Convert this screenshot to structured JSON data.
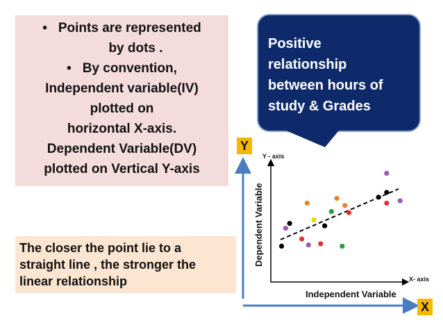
{
  "left_box": {
    "lines": [
      "Points are represented",
      "by dots .",
      "By convention,",
      "Independent variable(IV)",
      "plotted on",
      "horizontal  X-axis.",
      "Dependent Variable(DV)",
      "plotted on Vertical Y-axis"
    ]
  },
  "callout": {
    "lines": [
      "Positive",
      "relationship",
      "between hours of",
      "study & Grades"
    ]
  },
  "bottom_box": {
    "lines": [
      "The closer the point lie to a",
      "straight line , the stronger the",
      "linear relationship"
    ]
  },
  "labels": {
    "y": "Y",
    "x": "X"
  },
  "chart": {
    "y_axis_label": "Y - axis",
    "x_axis_label": "X- axis",
    "y_title": "Dependent Variable",
    "x_title": "Independent Variable"
  },
  "colors": {
    "arrow": "#4a7cc0",
    "callout_bg": "#0f2a6a",
    "label_bg": "#f5b800",
    "pink_bg": "#f4dcdc",
    "beige_bg": "#fce6d2"
  },
  "chart_data": {
    "type": "scatter",
    "title": "",
    "xlabel": "Independent Variable",
    "ylabel": "Dependent Variable",
    "trend": "positive linear",
    "points": [
      {
        "x": 0.08,
        "y": 0.3,
        "color": "#000000"
      },
      {
        "x": 0.11,
        "y": 0.45,
        "color": "#9b59b6"
      },
      {
        "x": 0.14,
        "y": 0.49,
        "color": "#000000"
      },
      {
        "x": 0.23,
        "y": 0.36,
        "color": "#e03030"
      },
      {
        "x": 0.27,
        "y": 0.66,
        "color": "#e8832a"
      },
      {
        "x": 0.28,
        "y": 0.31,
        "color": "#9b59b6"
      },
      {
        "x": 0.32,
        "y": 0.52,
        "color": "#e8d800"
      },
      {
        "x": 0.37,
        "y": 0.32,
        "color": "#e03030"
      },
      {
        "x": 0.4,
        "y": 0.47,
        "color": "#000000"
      },
      {
        "x": 0.45,
        "y": 0.59,
        "color": "#2a9d3a"
      },
      {
        "x": 0.49,
        "y": 0.7,
        "color": "#e8832a"
      },
      {
        "x": 0.53,
        "y": 0.3,
        "color": "#2a9d3a"
      },
      {
        "x": 0.55,
        "y": 0.64,
        "color": "#e8832a"
      },
      {
        "x": 0.58,
        "y": 0.58,
        "color": "#e03030"
      },
      {
        "x": 0.8,
        "y": 0.71,
        "color": "#000000"
      },
      {
        "x": 0.86,
        "y": 0.66,
        "color": "#e03030"
      },
      {
        "x": 0.86,
        "y": 0.75,
        "color": "#000000"
      },
      {
        "x": 0.86,
        "y": 0.91,
        "color": "#9b59b6"
      },
      {
        "x": 0.96,
        "y": 0.68,
        "color": "#9b59b6"
      }
    ]
  }
}
